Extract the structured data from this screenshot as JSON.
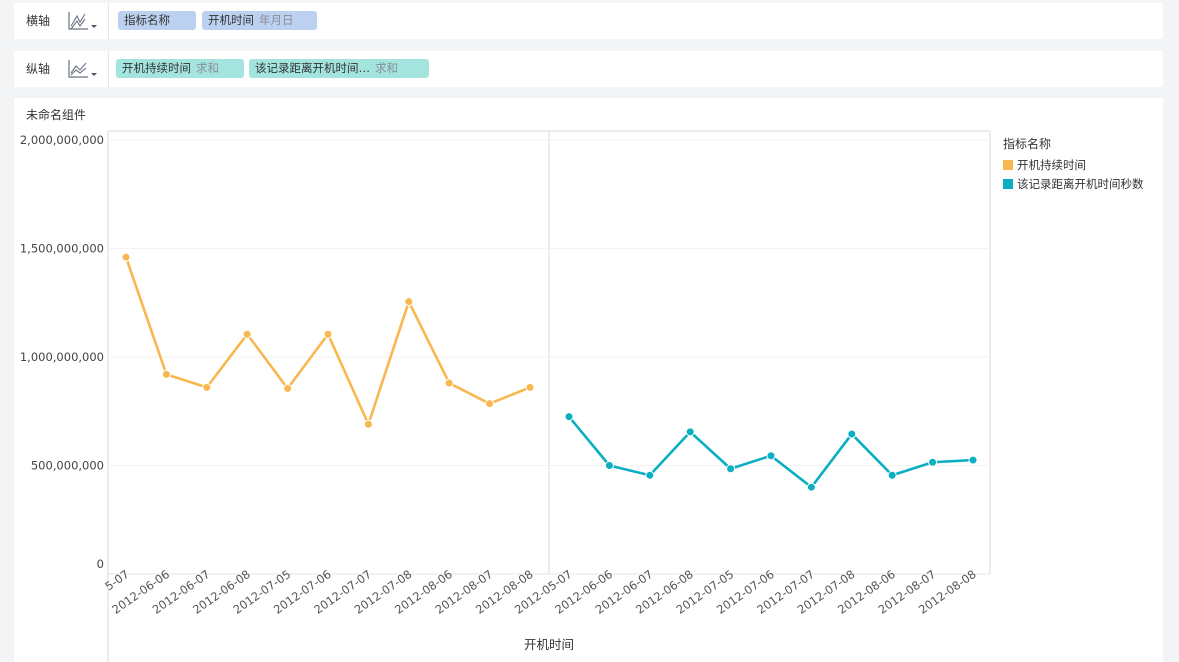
{
  "x_shelf": {
    "label": "横轴",
    "icon": "stacked-area-icon",
    "pills": [
      {
        "name": "指标名称",
        "sub": ""
      },
      {
        "name": "开机时间",
        "sub": "年月日"
      }
    ]
  },
  "y_shelf": {
    "label": "纵轴",
    "icon": "line-chart-icon",
    "pills": [
      {
        "name": "开机持续时间",
        "sub": "求和"
      },
      {
        "name": "该记录距离开机时间…",
        "sub": "求和"
      }
    ]
  },
  "component_title": "未命名组件",
  "colors": {
    "series1": "#f9b84f",
    "series2": "#0aafc1",
    "pill_blue": "#bcd1f0",
    "pill_teal": "#a4e4df"
  },
  "chart_data": {
    "type": "line",
    "xlabel": "开机时间",
    "ylabel": "",
    "ylim": [
      0,
      2000000000
    ],
    "y_ticks": [
      0,
      500000000,
      1000000000,
      1500000000,
      2000000000
    ],
    "y_tick_labels": [
      "0",
      "500,000,000",
      "1,000,000,000",
      "1,500,000,000",
      "2,000,000,000"
    ],
    "grid": true,
    "legend": {
      "title": "指标名称",
      "position": "right"
    },
    "categories": [
      "2012-05-07",
      "2012-06-06",
      "2012-06-07",
      "2012-06-08",
      "2012-07-05",
      "2012-07-06",
      "2012-07-07",
      "2012-07-08",
      "2012-08-06",
      "2012-08-07",
      "2012-08-08"
    ],
    "tick_labels_panel1": [
      "5-07",
      "2012-06-06",
      "2012-06-07",
      "2012-06-08",
      "2012-07-05",
      "2012-07-06",
      "2012-07-07",
      "2012-07-08",
      "2012-08-06",
      "2012-08-07",
      "2012-08-08"
    ],
    "tick_labels_panel2": [
      "2012-05-07",
      "2012-06-06",
      "2012-06-07",
      "2012-06-08",
      "2012-07-05",
      "2012-07-06",
      "2012-07-07",
      "2012-07-08",
      "2012-08-06",
      "2012-08-07",
      "2012-08-08"
    ],
    "series": [
      {
        "name": "开机持续时间",
        "values": [
          1460000000,
          920000000,
          860000000,
          1105000000,
          855000000,
          1105000000,
          690000000,
          1255000000,
          880000000,
          785000000,
          860000000
        ]
      },
      {
        "name": "该记录距离开机时间秒数",
        "values": [
          725000000,
          500000000,
          455000000,
          655000000,
          485000000,
          545000000,
          400000000,
          645000000,
          455000000,
          515000000,
          525000000
        ]
      }
    ]
  }
}
